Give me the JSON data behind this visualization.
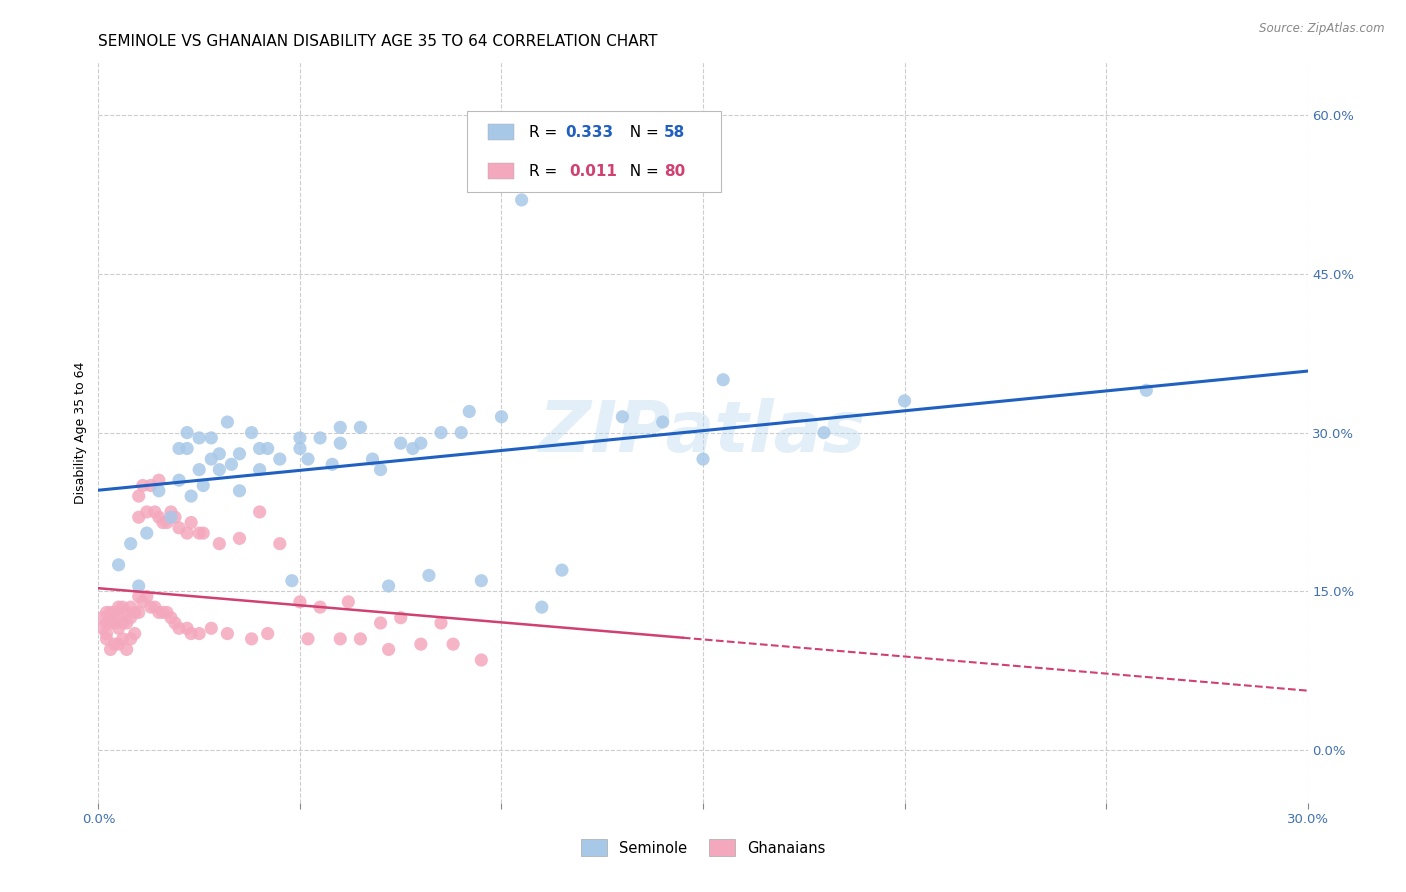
{
  "title": "SEMINOLE VS GHANAIAN DISABILITY AGE 35 TO 64 CORRELATION CHART",
  "source": "Source: ZipAtlas.com",
  "ylabel": "Disability Age 35 to 64",
  "watermark": "ZIPatlas",
  "xlim": [
    0.0,
    0.3
  ],
  "ylim": [
    -0.05,
    0.65
  ],
  "x_ticks": [
    0.0,
    0.05,
    0.1,
    0.15,
    0.2,
    0.25,
    0.3
  ],
  "x_tick_labels": [
    "0.0%",
    "",
    "",
    "",
    "",
    "",
    "30.0%"
  ],
  "right_y_ticks": [
    0.0,
    0.15,
    0.3,
    0.45,
    0.6
  ],
  "right_y_labels": [
    "0.0%",
    "15.0%",
    "30.0%",
    "45.0%",
    "60.0%"
  ],
  "seminole_R": 0.333,
  "seminole_N": 58,
  "ghanaian_R": 0.011,
  "ghanaian_N": 80,
  "seminole_color": "#a8c8e8",
  "ghanaian_color": "#f4a8be",
  "seminole_line_color": "#2060c0",
  "ghanaian_line_color": "#d04070",
  "seminole_x": [
    0.005,
    0.008,
    0.01,
    0.012,
    0.015,
    0.018,
    0.02,
    0.02,
    0.022,
    0.022,
    0.023,
    0.025,
    0.025,
    0.026,
    0.028,
    0.028,
    0.03,
    0.03,
    0.032,
    0.033,
    0.035,
    0.035,
    0.038,
    0.04,
    0.04,
    0.042,
    0.045,
    0.048,
    0.05,
    0.05,
    0.052,
    0.055,
    0.058,
    0.06,
    0.06,
    0.065,
    0.068,
    0.07,
    0.072,
    0.075,
    0.078,
    0.08,
    0.082,
    0.085,
    0.09,
    0.092,
    0.095,
    0.1,
    0.105,
    0.11,
    0.115,
    0.13,
    0.14,
    0.15,
    0.155,
    0.18,
    0.2,
    0.26
  ],
  "seminole_y": [
    0.175,
    0.195,
    0.155,
    0.205,
    0.245,
    0.22,
    0.285,
    0.255,
    0.3,
    0.285,
    0.24,
    0.265,
    0.295,
    0.25,
    0.275,
    0.295,
    0.265,
    0.28,
    0.31,
    0.27,
    0.28,
    0.245,
    0.3,
    0.265,
    0.285,
    0.285,
    0.275,
    0.16,
    0.285,
    0.295,
    0.275,
    0.295,
    0.27,
    0.29,
    0.305,
    0.305,
    0.275,
    0.265,
    0.155,
    0.29,
    0.285,
    0.29,
    0.165,
    0.3,
    0.3,
    0.32,
    0.16,
    0.315,
    0.52,
    0.135,
    0.17,
    0.315,
    0.31,
    0.275,
    0.35,
    0.3,
    0.33,
    0.34
  ],
  "ghanaian_x": [
    0.001,
    0.001,
    0.002,
    0.002,
    0.002,
    0.002,
    0.003,
    0.003,
    0.003,
    0.004,
    0.004,
    0.004,
    0.005,
    0.005,
    0.005,
    0.005,
    0.006,
    0.006,
    0.006,
    0.007,
    0.007,
    0.007,
    0.008,
    0.008,
    0.008,
    0.009,
    0.009,
    0.01,
    0.01,
    0.01,
    0.01,
    0.011,
    0.011,
    0.012,
    0.012,
    0.013,
    0.013,
    0.014,
    0.014,
    0.015,
    0.015,
    0.015,
    0.016,
    0.016,
    0.017,
    0.017,
    0.018,
    0.018,
    0.019,
    0.019,
    0.02,
    0.02,
    0.022,
    0.022,
    0.023,
    0.023,
    0.025,
    0.025,
    0.026,
    0.028,
    0.03,
    0.032,
    0.035,
    0.038,
    0.04,
    0.042,
    0.045,
    0.05,
    0.052,
    0.055,
    0.06,
    0.062,
    0.065,
    0.07,
    0.072,
    0.075,
    0.08,
    0.085,
    0.088,
    0.095
  ],
  "ghanaian_y": [
    0.125,
    0.115,
    0.13,
    0.12,
    0.11,
    0.105,
    0.13,
    0.12,
    0.095,
    0.13,
    0.12,
    0.1,
    0.135,
    0.125,
    0.115,
    0.1,
    0.135,
    0.12,
    0.105,
    0.13,
    0.12,
    0.095,
    0.135,
    0.125,
    0.105,
    0.13,
    0.11,
    0.24,
    0.22,
    0.145,
    0.13,
    0.25,
    0.14,
    0.225,
    0.145,
    0.25,
    0.135,
    0.225,
    0.135,
    0.255,
    0.22,
    0.13,
    0.215,
    0.13,
    0.215,
    0.13,
    0.225,
    0.125,
    0.22,
    0.12,
    0.21,
    0.115,
    0.205,
    0.115,
    0.215,
    0.11,
    0.205,
    0.11,
    0.205,
    0.115,
    0.195,
    0.11,
    0.2,
    0.105,
    0.225,
    0.11,
    0.195,
    0.14,
    0.105,
    0.135,
    0.105,
    0.14,
    0.105,
    0.12,
    0.095,
    0.125,
    0.1,
    0.12,
    0.1,
    0.085
  ],
  "bg_color": "#ffffff",
  "grid_color": "#cccccc",
  "title_fontsize": 11,
  "tick_fontsize": 9.5,
  "legend_fontsize": 11
}
